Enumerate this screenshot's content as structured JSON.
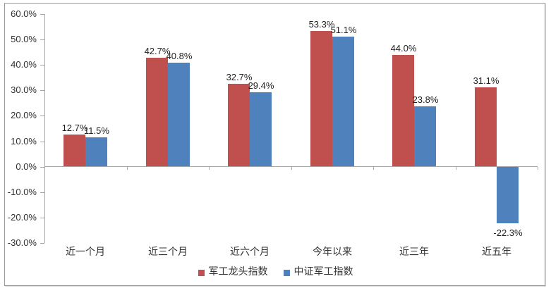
{
  "chart_data": {
    "type": "bar",
    "title": "",
    "xlabel": "",
    "ylabel": "",
    "categories": [
      "近一个月",
      "近三个月",
      "近六个月",
      "今年以来",
      "近三年",
      "近五年"
    ],
    "series": [
      {
        "name": "军工龙头指数",
        "color": "#C0504D",
        "values": [
          12.7,
          42.7,
          32.7,
          53.3,
          44.0,
          31.1
        ]
      },
      {
        "name": "中证军工指数",
        "color": "#4F81BD",
        "values": [
          11.5,
          40.8,
          29.4,
          51.1,
          23.8,
          -22.3
        ]
      }
    ],
    "data_labels": [
      [
        "12.7%",
        "42.7%",
        "32.7%",
        "53.3%",
        "44.0%",
        "31.1%"
      ],
      [
        "11.5%",
        "40.8%",
        "29.4%",
        "51.1%",
        "23.8%",
        "-22.3%"
      ]
    ],
    "y_axis": {
      "min": -30,
      "max": 60,
      "step": 10,
      "tick_labels": [
        "60.0%",
        "50.0%",
        "40.0%",
        "30.0%",
        "20.0%",
        "10.0%",
        "0.0%",
        "-10.0%",
        "-20.0%",
        "-30.0%"
      ]
    },
    "grid": false,
    "legend_position": "bottom",
    "legend": [
      "军工龙头指数",
      "中证军工指数"
    ]
  },
  "colors": {
    "series_red": "#C0504D",
    "series_blue": "#4F81BD",
    "axis": "#A6A6A6",
    "text": "#333333",
    "frame_border": "#9A9A9A"
  }
}
